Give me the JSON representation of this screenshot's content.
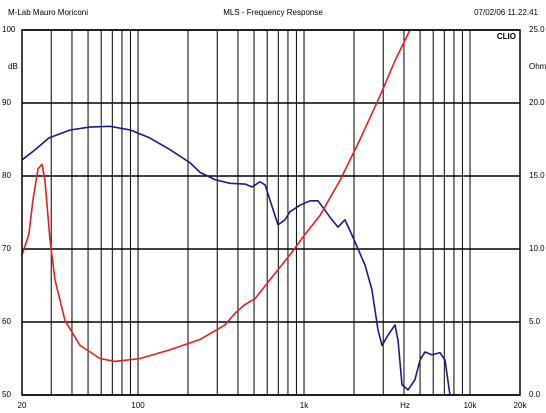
{
  "chart_data": {
    "type": "line",
    "header_left": "M-Lab Mauro Moriconi",
    "title": "MLS - Frequency Response",
    "header_right": "07/02/06 11.22.41",
    "brand": "CLIO",
    "ylabel": "dB",
    "y2label": "Ohm",
    "xlabel": "Hz",
    "xscale": "log",
    "grid": true,
    "xlim": [
      20,
      20000
    ],
    "xticks": [
      20,
      100,
      {
        "value": 1000,
        "label": "1k"
      },
      {
        "value": 10000,
        "label": "10k"
      },
      {
        "value": 20000,
        "label": "20k"
      }
    ],
    "x_minor_grid": [
      30,
      40,
      50,
      60,
      70,
      80,
      90,
      200,
      300,
      400,
      500,
      600,
      700,
      800,
      900,
      2000,
      3000,
      4000,
      5000,
      6000,
      7000,
      8000,
      9000
    ],
    "ylim": [
      50,
      100
    ],
    "yticks": [
      50,
      60,
      70,
      80,
      90,
      100
    ],
    "y2lim": [
      0,
      25
    ],
    "y2ticks": [
      {
        "value": 0,
        "label": "0.0"
      },
      {
        "value": 5,
        "label": "5.0"
      },
      {
        "value": 10,
        "label": "10.0"
      },
      {
        "value": 15,
        "label": "15.0"
      },
      {
        "value": 20,
        "label": "20.0"
      },
      {
        "value": 25,
        "label": "25.0"
      }
    ],
    "series": [
      {
        "color": "#1a1a8c",
        "x": [
          20,
          24,
          29,
          39,
          51,
          68,
          90,
          118,
          156,
          206,
          236,
          291,
          358,
          441,
          486,
          543,
          582,
          624,
          697,
          768,
          822,
          946,
          1087,
          1214,
          1337,
          1473,
          1602,
          1765,
          1945,
          2330,
          2566,
          2790,
          2951,
          3206,
          3532,
          3683,
          3892,
          4229,
          4660,
          5000,
          5355,
          5900,
          6594,
          7066,
          7570
        ],
        "values": [
          82.2,
          83.6,
          85.2,
          86.3,
          86.7,
          86.8,
          86.3,
          85.2,
          83.6,
          81.8,
          80.5,
          79.5,
          79.0,
          78.9,
          78.5,
          79.2,
          78.8,
          76.7,
          73.3,
          74.0,
          75.1,
          76.0,
          76.6,
          76.6,
          75.3,
          74.0,
          73.0,
          74.0,
          71.9,
          67.8,
          64.4,
          58.9,
          56.8,
          58.2,
          59.6,
          57.5,
          51.4,
          50.7,
          52.1,
          54.8,
          55.9,
          55.5,
          55.8,
          54.8,
          50.0
        ]
      },
      {
        "color": "#e8201c",
        "axis": "y2",
        "x": [
          20,
          22,
          23.3,
          25,
          26.4,
          27.5,
          29.5,
          31.6,
          36.3,
          44.7,
          59,
          72.6,
          103,
          156,
          236,
          334,
          384,
          441,
          507,
          624,
          822,
          1014,
          1248,
          1647,
          2174,
          2870,
          3532,
          4347
        ],
        "values": [
          9.6,
          11.0,
          13.4,
          15.5,
          15.8,
          14.7,
          10.6,
          7.9,
          5.1,
          3.4,
          2.5,
          2.3,
          2.5,
          3.1,
          3.8,
          4.8,
          5.6,
          6.2,
          6.6,
          7.9,
          9.6,
          11.0,
          12.3,
          14.7,
          17.5,
          20.5,
          22.9,
          25.0
        ]
      }
    ]
  }
}
